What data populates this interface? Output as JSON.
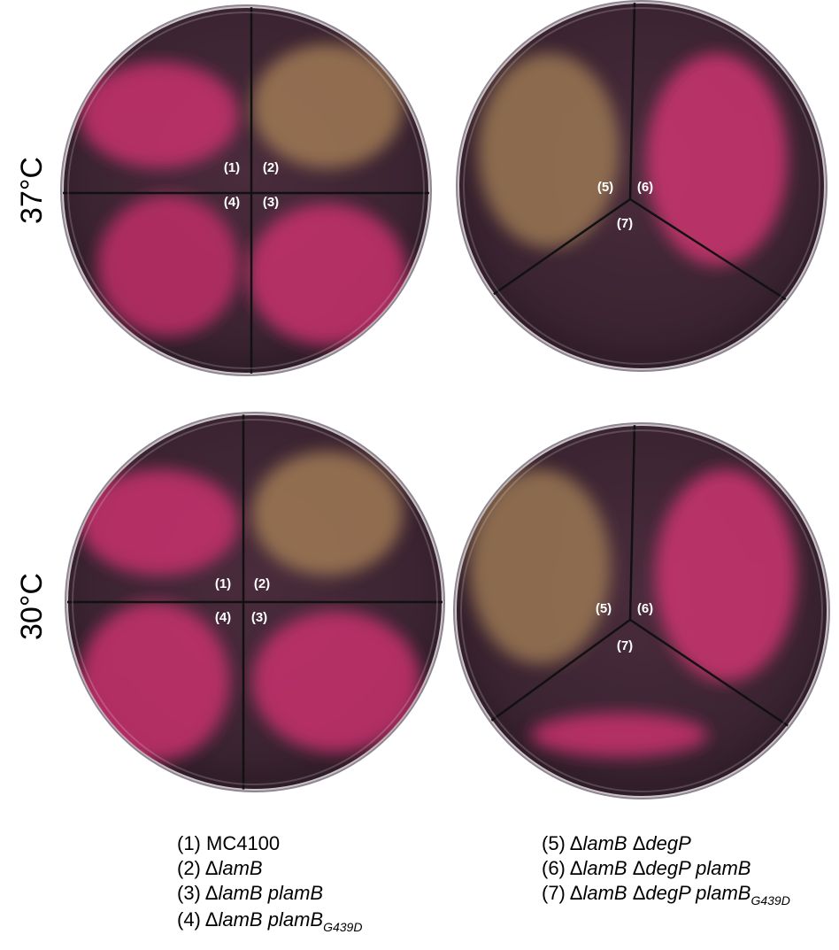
{
  "row_labels": [
    "37°C",
    "30°C"
  ],
  "plates": [
    {
      "labels": [
        "(1)",
        "(2)",
        "(3)",
        "(4)"
      ]
    },
    {
      "labels": [
        "(5)",
        "(6)",
        "(7)"
      ]
    },
    {
      "labels": [
        "(1)",
        "(2)",
        "(3)",
        "(4)"
      ]
    },
    {
      "labels": [
        "(5)",
        "(6)",
        "(7)"
      ]
    }
  ],
  "legend": [
    [
      {
        "text": "(1) MC4100"
      }
    ],
    [
      {
        "text": "(2) Δ"
      },
      {
        "text": "lamB",
        "style": "italic"
      }
    ],
    [
      {
        "text": "(3) Δ"
      },
      {
        "text": "lamB plamB",
        "style": "italic"
      }
    ],
    [
      {
        "text": "(4) Δ"
      },
      {
        "text": "lamB plamB",
        "style": "italic"
      },
      {
        "text": "G439D",
        "style": "subscript"
      }
    ],
    [
      {
        "text": "(5) Δ"
      },
      {
        "text": "lamB",
        "style": "italic"
      },
      {
        "text": " Δ"
      },
      {
        "text": "degP",
        "style": "italic"
      }
    ],
    [
      {
        "text": "(6) Δ"
      },
      {
        "text": "lamB",
        "style": "italic"
      },
      {
        "text": " Δ"
      },
      {
        "text": "degP plamB",
        "style": "italic"
      }
    ],
    [
      {
        "text": "(7) Δ"
      },
      {
        "text": "lamB",
        "style": "italic"
      },
      {
        "text": " Δ"
      },
      {
        "text": "degP plamB",
        "style": "italic"
      },
      {
        "text": "G439D",
        "style": "subscript"
      }
    ]
  ]
}
